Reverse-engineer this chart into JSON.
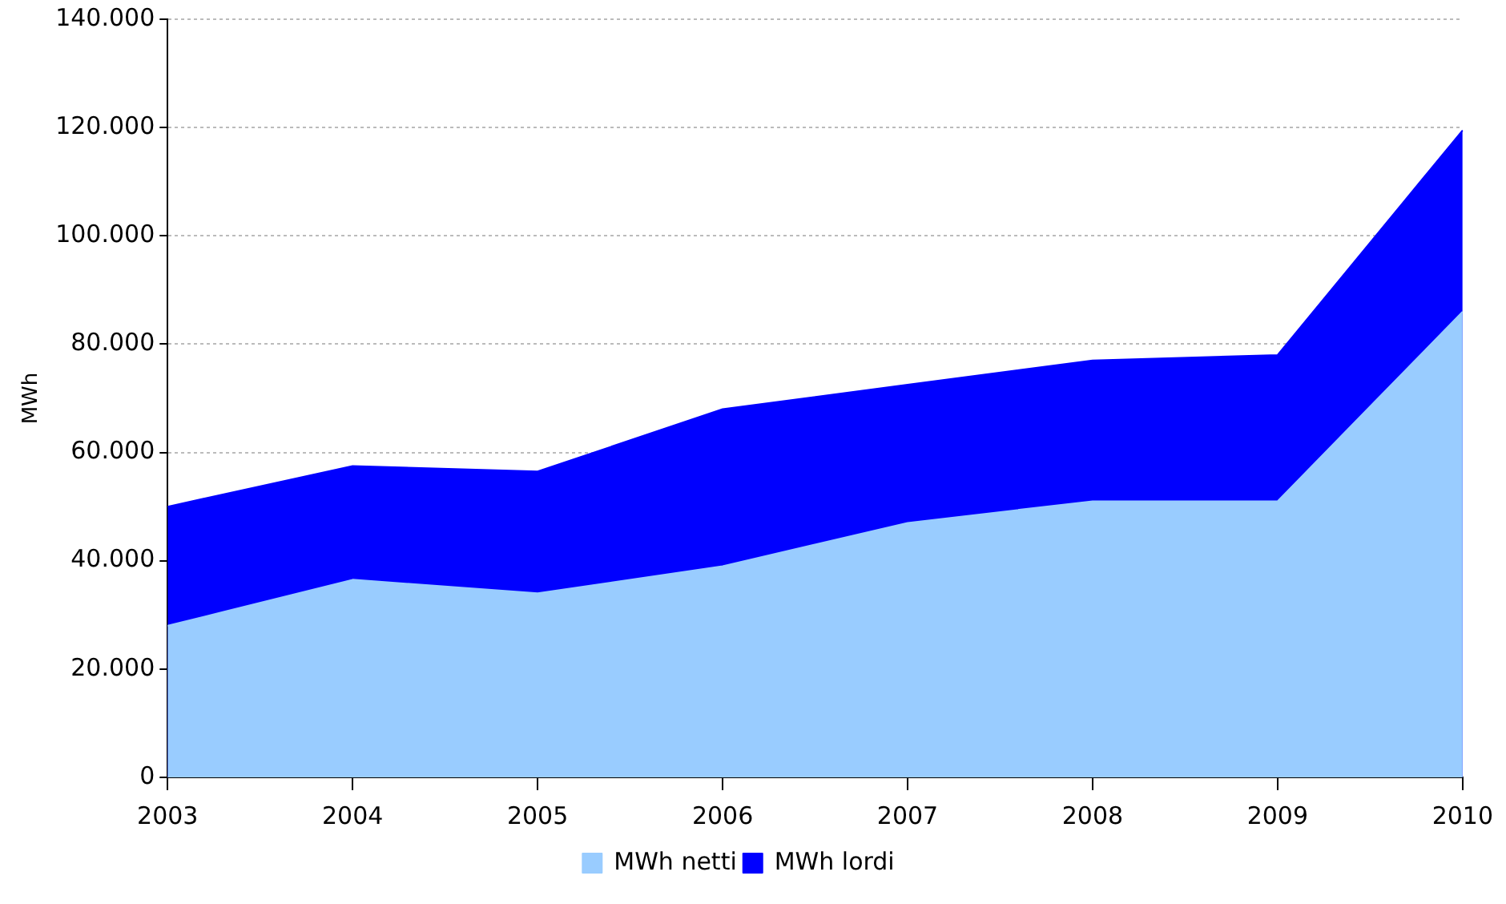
{
  "chart_data": {
    "type": "area",
    "ylabel": "MWh",
    "categories": [
      "2003",
      "2004",
      "2005",
      "2006",
      "2007",
      "2008",
      "2009",
      "2010"
    ],
    "series": [
      {
        "name": "MWh netti",
        "color": "#99ccff",
        "values": [
          28000,
          36500,
          34000,
          39000,
          47000,
          51000,
          51000,
          86000
        ]
      },
      {
        "name": "MWh lordi",
        "color": "#0000ff",
        "values": [
          50000,
          57500,
          56500,
          68000,
          72500,
          77000,
          78000,
          119500
        ]
      }
    ],
    "ylim": [
      0,
      140000
    ],
    "yticks": [
      {
        "value": 0,
        "label": "0"
      },
      {
        "value": 20000,
        "label": "20.000"
      },
      {
        "value": 40000,
        "label": "40.000"
      },
      {
        "value": 60000,
        "label": "60.000"
      },
      {
        "value": 80000,
        "label": "80.000"
      },
      {
        "value": 100000,
        "label": "100.000"
      },
      {
        "value": 120000,
        "label": "120.000"
      },
      {
        "value": 140000,
        "label": "140.000"
      }
    ],
    "grid": true,
    "legend": "bottom"
  }
}
